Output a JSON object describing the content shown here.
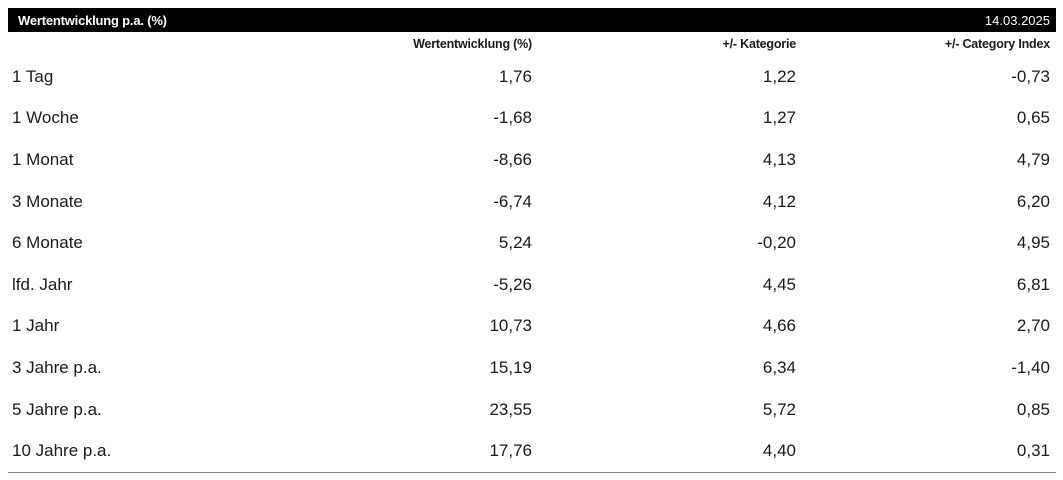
{
  "header": {
    "title": "Wertentwicklung p.a. (%)",
    "date": "14.03.2025"
  },
  "columns": [
    "",
    "Wertentwicklung (%)",
    "+/- Kategorie",
    "+/- Category Index"
  ],
  "rows": [
    {
      "label": "1 Tag",
      "wert": "1,76",
      "kategorie": "1,22",
      "index": "-0,73"
    },
    {
      "label": "1 Woche",
      "wert": "-1,68",
      "kategorie": "1,27",
      "index": "0,65"
    },
    {
      "label": "1 Monat",
      "wert": "-8,66",
      "kategorie": "4,13",
      "index": "4,79"
    },
    {
      "label": "3 Monate",
      "wert": "-6,74",
      "kategorie": "4,12",
      "index": "6,20"
    },
    {
      "label": "6 Monate",
      "wert": "5,24",
      "kategorie": "-0,20",
      "index": "4,95"
    },
    {
      "label": "lfd. Jahr",
      "wert": "-5,26",
      "kategorie": "4,45",
      "index": "6,81"
    },
    {
      "label": "1 Jahr",
      "wert": "10,73",
      "kategorie": "4,66",
      "index": "2,70"
    },
    {
      "label": "3 Jahre p.a.",
      "wert": "15,19",
      "kategorie": "6,34",
      "index": "-1,40"
    },
    {
      "label": "5 Jahre p.a.",
      "wert": "23,55",
      "kategorie": "5,72",
      "index": "0,85"
    },
    {
      "label": "10 Jahre p.a.",
      "wert": "17,76",
      "kategorie": "4,40",
      "index": "0,31"
    }
  ]
}
